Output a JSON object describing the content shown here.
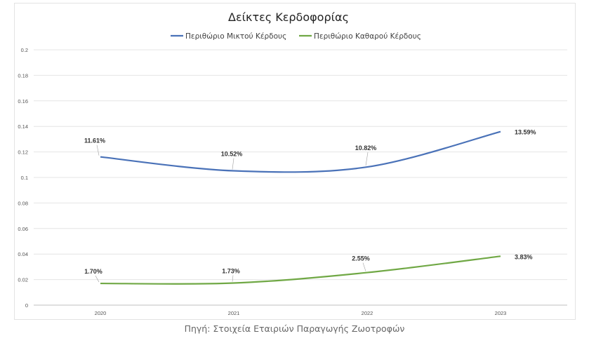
{
  "source_note": "Πηγή: Στοιχεία Εταιριών Παραγωγής Ζωοτροφών",
  "chart_data": {
    "type": "line",
    "title": "Δείκτες Κερδοφορίας",
    "categories": [
      "2020",
      "2021",
      "2022",
      "2023"
    ],
    "ylim": [
      0,
      0.2
    ],
    "yticks": [
      "0",
      "0.02",
      "0.04",
      "0.06",
      "0.08",
      "0.1",
      "0.12",
      "0.14",
      "0.16",
      "0.18",
      "0.2"
    ],
    "grid": true,
    "legend_position": "top",
    "series": [
      {
        "name": "Περιθώριο Μικτού Κέρδους",
        "color": "#4a72b8",
        "values": [
          0.1161,
          0.1052,
          0.1082,
          0.1359
        ],
        "labels": [
          "11.61%",
          "10.52%",
          "10.82%",
          "13.59%"
        ]
      },
      {
        "name": "Περιθώριο Καθαρού Κέρδους",
        "color": "#70a845",
        "values": [
          0.017,
          0.0173,
          0.0255,
          0.0383
        ],
        "labels": [
          "1.70%",
          "1.73%",
          "2.55%",
          "3.83%"
        ]
      }
    ]
  }
}
